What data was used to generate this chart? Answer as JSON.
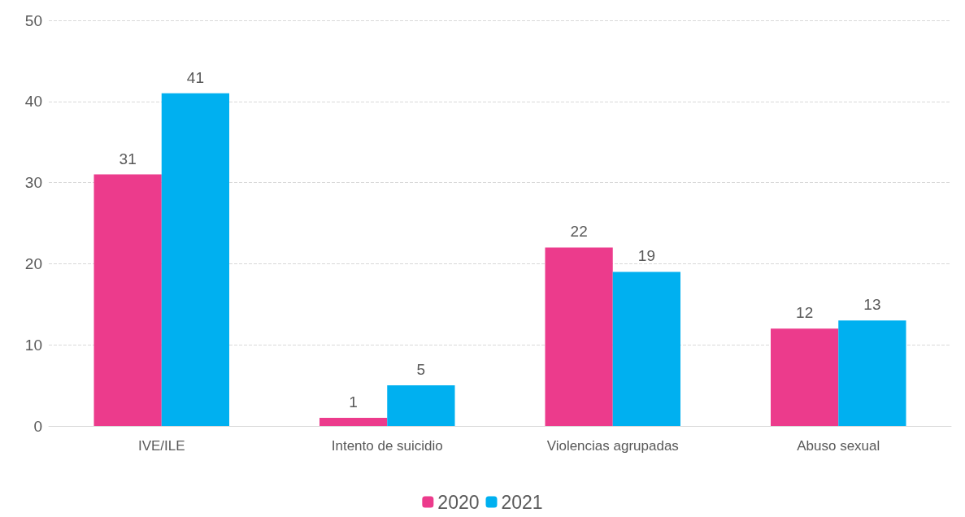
{
  "chart_data": {
    "type": "bar",
    "categories": [
      "IVE/ILE",
      "Intento de suicidio",
      "Violencias agrupadas",
      "Abuso sexual"
    ],
    "series": [
      {
        "name": "2020",
        "color": "#ec3b8c",
        "values": [
          31,
          1,
          22,
          12
        ]
      },
      {
        "name": "2021",
        "color": "#00b0f0",
        "values": [
          41,
          5,
          19,
          13
        ]
      }
    ],
    "ylim": [
      0,
      50
    ],
    "yticks": [
      0,
      10,
      20,
      30,
      40,
      50
    ],
    "grid": "y",
    "legend": "bottom",
    "data_labels": true
  }
}
